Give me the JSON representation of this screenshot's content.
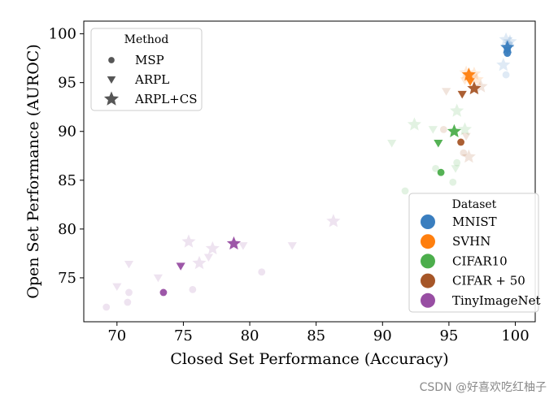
{
  "chart_data": {
    "type": "scatter",
    "xlabel": "Closed Set Performance (Accuracy)",
    "ylabel": "Open Set Performance (AUROC)",
    "xlim": [
      67.5,
      101.5
    ],
    "ylim": [
      70.5,
      101.3
    ],
    "xticks": [
      70,
      75,
      80,
      85,
      90,
      95,
      100
    ],
    "yticks": [
      75,
      80,
      85,
      90,
      95,
      100
    ],
    "legend_method": {
      "title": "Method",
      "placement": "top-left",
      "entries": [
        {
          "label": "MSP",
          "marker": "circle"
        },
        {
          "label": "ARPL",
          "marker": "triangle-down"
        },
        {
          "label": "ARPL+CS",
          "marker": "star"
        }
      ]
    },
    "legend_dataset": {
      "title": "Dataset",
      "placement": "bottom-right",
      "entries": [
        {
          "label": "MNIST",
          "color": "#3a7ebf"
        },
        {
          "label": "SVHN",
          "color": "#ff7f0e"
        },
        {
          "label": "CIFAR10",
          "color": "#4cae4c"
        },
        {
          "label": "CIFAR + 50",
          "color": "#a65628"
        },
        {
          "label": "TinyImageNet",
          "color": "#984ea3"
        }
      ]
    },
    "series": [
      {
        "name": "MNIST",
        "color": "#3a7ebf",
        "points": [
          {
            "x": 99.4,
            "y": 98.6,
            "m": "star",
            "main": true
          },
          {
            "x": 99.4,
            "y": 98.3,
            "m": "tri",
            "main": true
          },
          {
            "x": 99.4,
            "y": 98.0,
            "m": "circle",
            "main": true
          },
          {
            "x": 99.3,
            "y": 99.4,
            "m": "star",
            "main": false
          },
          {
            "x": 99.6,
            "y": 99.2,
            "m": "star",
            "main": false
          },
          {
            "x": 99.1,
            "y": 96.8,
            "m": "star",
            "main": false
          },
          {
            "x": 99.5,
            "y": 99.0,
            "m": "circle",
            "main": false
          },
          {
            "x": 99.3,
            "y": 95.8,
            "m": "circle",
            "main": false
          },
          {
            "x": 99.5,
            "y": 98.8,
            "m": "tri",
            "main": false
          }
        ]
      },
      {
        "name": "SVHN",
        "color": "#ff7f0e",
        "points": [
          {
            "x": 96.5,
            "y": 95.8,
            "m": "star",
            "main": true
          },
          {
            "x": 96.6,
            "y": 95.1,
            "m": "tri",
            "main": true
          },
          {
            "x": 96.3,
            "y": 96.0,
            "m": "star",
            "main": false
          },
          {
            "x": 96.9,
            "y": 95.9,
            "m": "star",
            "main": false
          },
          {
            "x": 97.1,
            "y": 95.3,
            "m": "star",
            "main": false
          },
          {
            "x": 96.2,
            "y": 95.2,
            "m": "tri",
            "main": false
          },
          {
            "x": 96.8,
            "y": 95.5,
            "m": "tri",
            "main": false
          },
          {
            "x": 96.4,
            "y": 95.6,
            "m": "circle",
            "main": false
          }
        ]
      },
      {
        "name": "CIFAR10",
        "color": "#4cae4c",
        "points": [
          {
            "x": 95.4,
            "y": 90.0,
            "m": "star",
            "main": true
          },
          {
            "x": 94.2,
            "y": 88.8,
            "m": "tri",
            "main": true
          },
          {
            "x": 94.4,
            "y": 85.8,
            "m": "circle",
            "main": true
          },
          {
            "x": 92.4,
            "y": 90.7,
            "m": "star",
            "main": false
          },
          {
            "x": 95.6,
            "y": 92.1,
            "m": "star",
            "main": false
          },
          {
            "x": 96.2,
            "y": 90.2,
            "m": "star",
            "main": false
          },
          {
            "x": 90.7,
            "y": 88.8,
            "m": "tri",
            "main": false
          },
          {
            "x": 93.8,
            "y": 90.2,
            "m": "tri",
            "main": false
          },
          {
            "x": 95.5,
            "y": 86.2,
            "m": "tri",
            "main": false
          },
          {
            "x": 91.7,
            "y": 83.9,
            "m": "circle",
            "main": false
          },
          {
            "x": 94.0,
            "y": 86.2,
            "m": "circle",
            "main": false
          },
          {
            "x": 95.3,
            "y": 84.8,
            "m": "circle",
            "main": false
          },
          {
            "x": 95.6,
            "y": 86.8,
            "m": "circle",
            "main": false
          }
        ]
      },
      {
        "name": "CIFAR + 50",
        "color": "#a65628",
        "points": [
          {
            "x": 96.9,
            "y": 94.4,
            "m": "star",
            "main": true
          },
          {
            "x": 96.0,
            "y": 93.8,
            "m": "tri",
            "main": true
          },
          {
            "x": 95.9,
            "y": 88.9,
            "m": "circle",
            "main": true
          },
          {
            "x": 97.4,
            "y": 94.6,
            "m": "star",
            "main": false
          },
          {
            "x": 96.5,
            "y": 87.4,
            "m": "star",
            "main": false
          },
          {
            "x": 94.8,
            "y": 94.1,
            "m": "tri",
            "main": false
          },
          {
            "x": 96.3,
            "y": 89.5,
            "m": "tri",
            "main": false
          },
          {
            "x": 96.1,
            "y": 87.8,
            "m": "circle",
            "main": false
          },
          {
            "x": 94.6,
            "y": 90.2,
            "m": "circle",
            "main": false
          }
        ]
      },
      {
        "name": "TinyImageNet",
        "color": "#984ea3",
        "points": [
          {
            "x": 78.8,
            "y": 78.5,
            "m": "star",
            "main": true
          },
          {
            "x": 74.8,
            "y": 76.2,
            "m": "tri",
            "main": true
          },
          {
            "x": 73.5,
            "y": 73.5,
            "m": "circle",
            "main": true
          },
          {
            "x": 86.3,
            "y": 80.8,
            "m": "star",
            "main": false
          },
          {
            "x": 75.4,
            "y": 78.7,
            "m": "star",
            "main": false
          },
          {
            "x": 77.2,
            "y": 78.0,
            "m": "star",
            "main": false
          },
          {
            "x": 76.2,
            "y": 76.5,
            "m": "star",
            "main": false
          },
          {
            "x": 70.9,
            "y": 76.4,
            "m": "tri",
            "main": false
          },
          {
            "x": 70.0,
            "y": 74.1,
            "m": "tri",
            "main": false
          },
          {
            "x": 73.1,
            "y": 75.0,
            "m": "tri",
            "main": false
          },
          {
            "x": 76.9,
            "y": 77.1,
            "m": "tri",
            "main": false
          },
          {
            "x": 79.5,
            "y": 78.3,
            "m": "tri",
            "main": false
          },
          {
            "x": 83.2,
            "y": 78.3,
            "m": "tri",
            "main": false
          },
          {
            "x": 69.2,
            "y": 72.0,
            "m": "circle",
            "main": false
          },
          {
            "x": 70.8,
            "y": 72.5,
            "m": "circle",
            "main": false
          },
          {
            "x": 70.9,
            "y": 73.5,
            "m": "circle",
            "main": false
          },
          {
            "x": 75.7,
            "y": 73.8,
            "m": "circle",
            "main": false
          },
          {
            "x": 80.9,
            "y": 75.6,
            "m": "circle",
            "main": false
          }
        ]
      }
    ]
  },
  "watermark": "CSDN @好喜欢吃红柚子"
}
